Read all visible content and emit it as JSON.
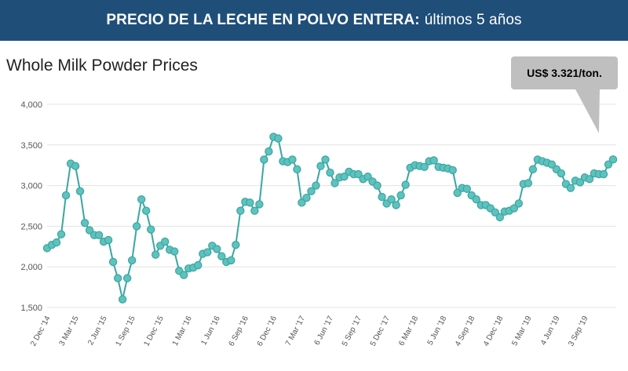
{
  "banner": {
    "bold_text": "PRECIO DE LA LECHE EN POLVO ENTERA:",
    "normal_text": "últimos 5 años"
  },
  "callout": {
    "text": "US$ 3.321/ton."
  },
  "colors": {
    "banner_bg": "#1f4e79",
    "line": "#3aa6a2",
    "marker_fill": "#5ec2bd",
    "callout_bg": "#bfbfbf",
    "grid": "#e3e3e3"
  },
  "chart_data": {
    "type": "line",
    "title": "Whole Milk Powder Prices",
    "xlabel": "",
    "ylabel": "",
    "ylim": [
      1500,
      4000
    ],
    "yticks": [
      1500,
      2000,
      2500,
      3000,
      3500,
      4000
    ],
    "ytick_labels": [
      "1,500",
      "2,000",
      "2,500",
      "3,000",
      "3,500",
      "4,000"
    ],
    "xtick_labels": [
      "2 Dec '14",
      "3 Mar '15",
      "2 Jun '15",
      "1 Sep '15",
      "1 Dec '15",
      "1 Mar '16",
      "1 Jun '16",
      "6 Sep '16",
      "6 Dec '16",
      "7 Mar '17",
      "6 Jun '17",
      "5 Sep '17",
      "5 Dec '17",
      "6 Mar '18",
      "5 Jun '18",
      "4 Sep '18",
      "4 Dec '18",
      "5 Mar '19",
      "4 Jun '19",
      "3 Sep '19"
    ],
    "xtick_index": [
      0,
      6,
      12,
      18,
      24,
      30,
      36,
      42,
      48,
      54,
      60,
      66,
      72,
      78,
      84,
      90,
      96,
      102,
      108,
      114
    ],
    "series": [
      {
        "name": "Whole Milk Powder",
        "values": [
          2230,
          2270,
          2300,
          2400,
          2880,
          3270,
          3240,
          2930,
          2540,
          2450,
          2390,
          2390,
          2310,
          2330,
          2060,
          1860,
          1600,
          1860,
          2080,
          2500,
          2830,
          2690,
          2460,
          2150,
          2260,
          2310,
          2210,
          2190,
          1950,
          1900,
          1980,
          1990,
          2020,
          2160,
          2180,
          2260,
          2220,
          2130,
          2060,
          2080,
          2270,
          2690,
          2800,
          2790,
          2690,
          2770,
          3320,
          3420,
          3600,
          3580,
          3300,
          3290,
          3320,
          3200,
          2790,
          2850,
          2930,
          3000,
          3240,
          3320,
          3160,
          3030,
          3100,
          3110,
          3170,
          3140,
          3140,
          3080,
          3110,
          3050,
          3000,
          2860,
          2780,
          2830,
          2760,
          2880,
          3010,
          3220,
          3250,
          3240,
          3230,
          3300,
          3310,
          3230,
          3220,
          3210,
          3190,
          2910,
          2970,
          2960,
          2880,
          2830,
          2760,
          2760,
          2720,
          2670,
          2610,
          2680,
          2690,
          2720,
          2780,
          3020,
          3030,
          3200,
          3320,
          3300,
          3280,
          3260,
          3200,
          3150,
          3020,
          2970,
          3060,
          3040,
          3100,
          3080,
          3150,
          3140,
          3140,
          3260,
          3321
        ]
      }
    ]
  }
}
